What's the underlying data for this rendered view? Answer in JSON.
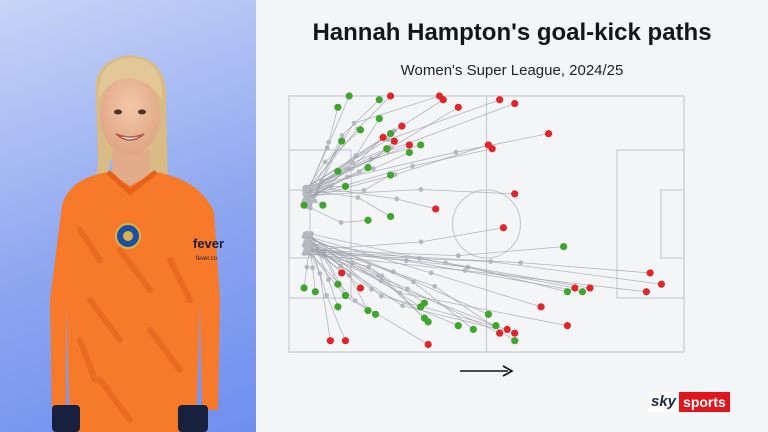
{
  "header": {
    "title": "Hannah Hampton's goal-kick paths",
    "subtitle": "Women's Super League, 2024/25"
  },
  "portrait": {
    "kit_text": "fever",
    "kit_subtext": "fever.co"
  },
  "branding": {
    "sky": "sky",
    "sports": "sports"
  },
  "colors": {
    "background": "#f4f5f7",
    "pitch_lines": "#c9ccd3",
    "path_line": "#9da0a8",
    "path_dot": "#b5b8bf",
    "success": "#3fa52e",
    "fail": "#e0252b",
    "panel_blue": "#7f9bf0",
    "shirt_orange": "#f7792a"
  },
  "chart_data": {
    "type": "scatter",
    "title": "Hannah Hampton's goal-kick paths",
    "subtitle": "Women's Super League, 2024/25",
    "attack_direction": "left-to-right",
    "pitch_length_m": [
      0,
      105
    ],
    "pitch_width_m": [
      0,
      68
    ],
    "legend": "none",
    "series": [
      {
        "outcome": "successful",
        "color": "#3fa52e",
        "end_points": [
          [
            16,
            68
          ],
          [
            24,
            67
          ],
          [
            13,
            65
          ],
          [
            24,
            62
          ],
          [
            19,
            59
          ],
          [
            27,
            58
          ],
          [
            14,
            56
          ],
          [
            35,
            55
          ],
          [
            26,
            54
          ],
          [
            32,
            53
          ],
          [
            13,
            48
          ],
          [
            21,
            49
          ],
          [
            27,
            47
          ],
          [
            15,
            44
          ],
          [
            4,
            39
          ],
          [
            9,
            39
          ],
          [
            21,
            35
          ],
          [
            27,
            36
          ],
          [
            4,
            17
          ],
          [
            7,
            16
          ],
          [
            13,
            18
          ],
          [
            15,
            15
          ],
          [
            13,
            12
          ],
          [
            21,
            11
          ],
          [
            23,
            10
          ],
          [
            36,
            13
          ],
          [
            35,
            12
          ],
          [
            36,
            9
          ],
          [
            37,
            8
          ],
          [
            45,
            7
          ],
          [
            49,
            6
          ],
          [
            53,
            10
          ],
          [
            55,
            7
          ],
          [
            60,
            3
          ],
          [
            73,
            28
          ],
          [
            78,
            16
          ],
          [
            74,
            16
          ]
        ]
      },
      {
        "outcome": "unsuccessful",
        "color": "#e0252b",
        "end_points": [
          [
            27,
            68
          ],
          [
            40,
            68
          ],
          [
            41,
            67
          ],
          [
            45,
            65
          ],
          [
            56,
            67
          ],
          [
            60,
            66
          ],
          [
            30,
            60
          ],
          [
            25,
            57
          ],
          [
            28,
            56
          ],
          [
            32,
            55
          ],
          [
            53,
            55
          ],
          [
            54,
            54
          ],
          [
            69,
            58
          ],
          [
            60,
            42
          ],
          [
            39,
            38
          ],
          [
            57,
            33
          ],
          [
            14,
            21
          ],
          [
            19,
            17
          ],
          [
            96,
            21
          ],
          [
            99,
            18
          ],
          [
            95,
            16
          ],
          [
            76,
            17
          ],
          [
            80,
            17
          ],
          [
            67,
            12
          ],
          [
            74,
            7
          ],
          [
            58,
            6
          ],
          [
            56,
            5
          ],
          [
            60,
            5
          ],
          [
            11,
            3
          ],
          [
            15,
            3
          ],
          [
            37,
            2
          ]
        ]
      }
    ]
  }
}
